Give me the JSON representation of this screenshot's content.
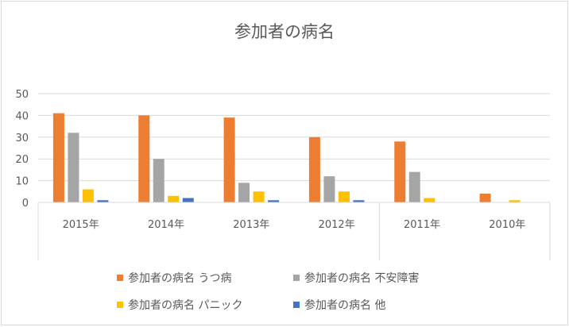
{
  "chart_data": {
    "type": "bar",
    "title": "参加者の病名",
    "categories": [
      "2015年",
      "2014年",
      "2013年",
      "2012年",
      "2011年",
      "2010年"
    ],
    "series": [
      {
        "name": "参加者の病名 うつ病",
        "color": "#ED7D31",
        "values": [
          41,
          40,
          39,
          30,
          28,
          4
        ]
      },
      {
        "name": "参加者の病名 不安障害",
        "color": "#A5A5A5",
        "values": [
          32,
          20,
          9,
          12,
          14,
          0
        ]
      },
      {
        "name": "参加者の病名 パニック",
        "color": "#FFC000",
        "values": [
          6,
          3,
          5,
          5,
          2,
          1
        ]
      },
      {
        "name": "参加者の病名 他",
        "color": "#4472C4",
        "values": [
          1,
          2,
          1,
          1,
          0,
          0
        ]
      }
    ],
    "ylim": [
      0,
      50
    ],
    "yticks": [
      0,
      10,
      20,
      30,
      40,
      50
    ],
    "grid": true,
    "legend": "bottom"
  }
}
